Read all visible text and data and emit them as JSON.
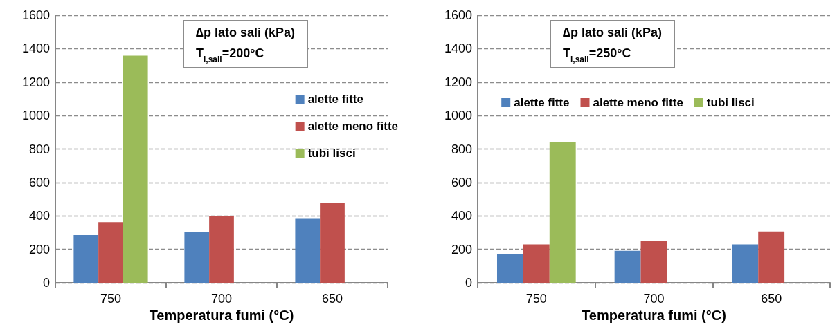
{
  "chart_data": [
    {
      "type": "bar",
      "title": "∆p lato sali (kPa)",
      "subtitle": "T$_{i,sali}$=200°C",
      "xlabel": "Temperatura fumi (°C)",
      "categories": [
        "750",
        "700",
        "650"
      ],
      "series": [
        {
          "name": "alette fitte",
          "color": "#4f81bd",
          "values": [
            285,
            305,
            382
          ]
        },
        {
          "name": "alette meno fitte",
          "color": "#c0504d",
          "values": [
            363,
            401,
            480
          ]
        },
        {
          "name": "tubi lisci",
          "color": "#9bbb59",
          "values": [
            1358,
            null,
            null
          ]
        }
      ],
      "ylim": [
        0,
        1600
      ],
      "yticks": [
        0,
        200,
        400,
        600,
        800,
        1000,
        1200,
        1400,
        1600
      ],
      "grid": "y",
      "legend": "right"
    },
    {
      "type": "bar",
      "title": "∆p lato sali (kPa)",
      "subtitle": "T$_{i,sali}$=250°C",
      "xlabel": "Temperatura fumi (°C)",
      "categories": [
        "750",
        "700",
        "650"
      ],
      "series": [
        {
          "name": "alette fitte",
          "color": "#4f81bd",
          "values": [
            171,
            191,
            229
          ]
        },
        {
          "name": "alette meno fitte",
          "color": "#c0504d",
          "values": [
            229,
            249,
            307
          ]
        },
        {
          "name": "tubi lisci",
          "color": "#9bbb59",
          "values": [
            843,
            null,
            null
          ]
        }
      ],
      "ylim": [
        0,
        1600
      ],
      "yticks": [
        0,
        200,
        400,
        600,
        800,
        1000,
        1200,
        1400,
        1600
      ],
      "grid": "y",
      "legend": "top"
    }
  ]
}
